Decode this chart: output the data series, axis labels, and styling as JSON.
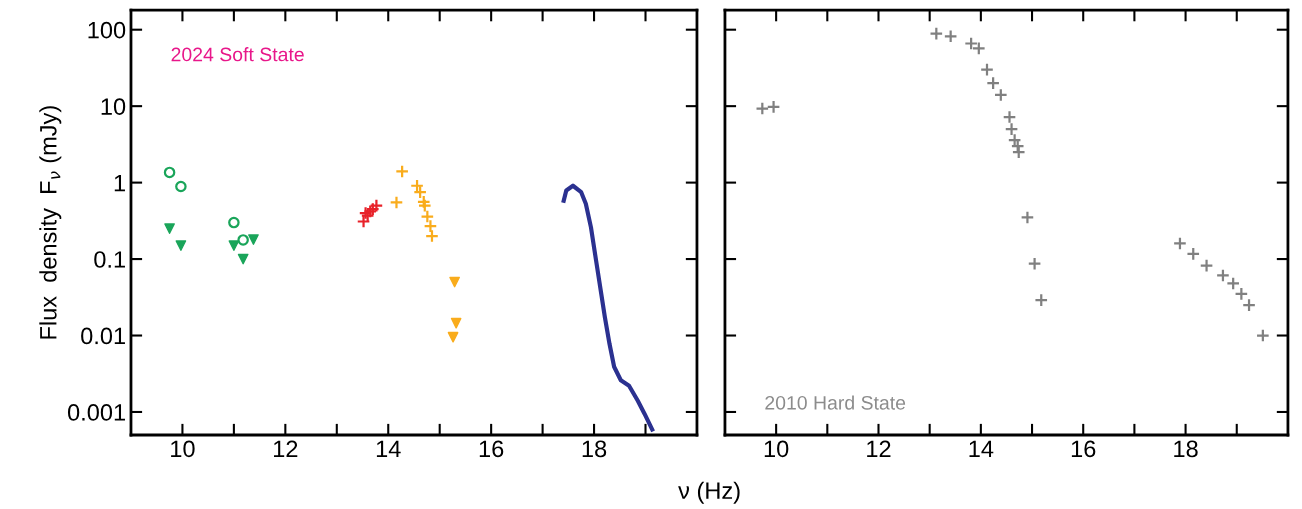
{
  "chart_data": [
    {
      "type": "scatter",
      "ylabel": "Flux  density  F$_{ν}$ (mJy)",
      "xlabel": "ν (Hz)",
      "log": "y",
      "grid": false,
      "legend": false,
      "xlim": [
        9,
        20
      ],
      "xticks": [
        10,
        {
          "value": 11,
          "label": null
        },
        12,
        {
          "value": 13,
          "label": null
        },
        14,
        {
          "value": 15,
          "label": null
        },
        16,
        {
          "value": 17,
          "label": null
        },
        18,
        {
          "value": 19,
          "label": null
        }
      ],
      "ylim": [
        0.0005,
        180
      ],
      "yticks": [
        0.001,
        0.01,
        0.1,
        1,
        10,
        100
      ],
      "annotations": [
        "2024 Soft State"
      ],
      "series": [
        {
          "marker": "circle",
          "color": "#1aa55a",
          "x": [
            9.75,
            9.97,
            11.0,
            11.18
          ],
          "values": [
            1.36,
            0.89,
            0.3,
            0.178
          ]
        },
        {
          "marker": "triangle",
          "color": "#1aa55a",
          "x": [
            9.75,
            9.97,
            11.0,
            11.18,
            11.38
          ],
          "values": [
            0.25,
            0.15,
            0.15,
            0.1,
            0.18
          ]
        },
        {
          "marker": "cross",
          "color": "#e8222a",
          "x": [
            13.52,
            13.56,
            13.6,
            13.65,
            13.7,
            13.77
          ],
          "values": [
            0.31,
            0.4,
            0.37,
            0.42,
            0.45,
            0.5
          ]
        },
        {
          "marker": "cross",
          "color": "#f9ac1c",
          "x": [
            14.16,
            14.27,
            14.56,
            14.62,
            14.69,
            14.71,
            14.76,
            14.82,
            14.85
          ],
          "values": [
            0.55,
            1.4,
            0.91,
            0.75,
            0.56,
            0.5,
            0.36,
            0.27,
            0.2
          ]
        },
        {
          "marker": "triangle",
          "color": "#f9ac1c",
          "x": [
            15.29,
            15.32,
            15.26
          ],
          "values": [
            0.05,
            0.0145,
            0.0095
          ]
        },
        {
          "type": "line",
          "marker": "none",
          "color": "#2b3190",
          "x": [
            17.41,
            17.46,
            17.59,
            17.75,
            17.84,
            17.94,
            18.04,
            18.14,
            18.21,
            18.3,
            18.39,
            18.52,
            18.68,
            18.85,
            18.98,
            19.13
          ],
          "values": [
            0.58,
            0.79,
            0.91,
            0.75,
            0.53,
            0.26,
            0.095,
            0.035,
            0.0174,
            0.0078,
            0.0039,
            0.0026,
            0.0022,
            0.0014,
            0.00095,
            0.00059
          ]
        }
      ]
    },
    {
      "type": "scatter",
      "log": "y",
      "grid": false,
      "legend": false,
      "tick_labels": "x",
      "xlim": [
        9,
        20
      ],
      "xticks": [
        10,
        {
          "value": 11,
          "label": null
        },
        12,
        {
          "value": 13,
          "label": null
        },
        14,
        {
          "value": 15,
          "label": null
        },
        16,
        {
          "value": 17,
          "label": null
        },
        18,
        {
          "value": 19,
          "label": null
        }
      ],
      "ylim": [
        0.0005,
        180
      ],
      "yticks": [
        0.001,
        0.01,
        0.1,
        1,
        10,
        100
      ],
      "annotations": [
        "2010 Hard State"
      ],
      "series": [
        {
          "marker": "cross",
          "color": "#808080",
          "x": [
            9.73,
            9.95,
            13.13,
            13.41,
            13.81,
            13.96,
            14.12,
            14.24,
            14.39,
            14.56,
            14.6,
            14.66,
            14.72,
            14.74,
            14.91,
            15.05,
            15.18,
            17.89,
            18.15,
            18.41,
            18.73,
            18.93,
            19.09,
            19.24,
            19.51
          ],
          "values": [
            9.3,
            9.8,
            89,
            82,
            66,
            57,
            30,
            20,
            14,
            7.2,
            5.0,
            3.6,
            3.0,
            2.5,
            0.35,
            0.087,
            0.029,
            0.16,
            0.117,
            0.082,
            0.061,
            0.048,
            0.035,
            0.025,
            0.01
          ]
        }
      ]
    }
  ]
}
